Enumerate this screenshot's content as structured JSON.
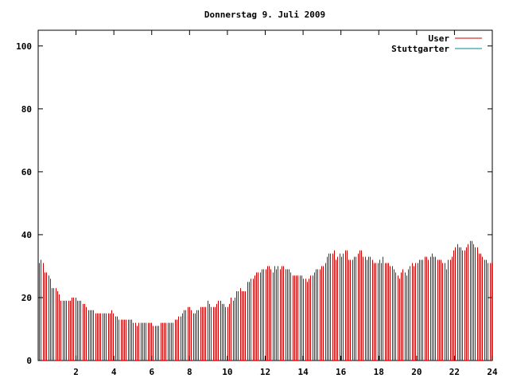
{
  "chart_data": {
    "type": "bar",
    "title": "Donnerstag 9. Juli 2009",
    "xlabel": "",
    "ylabel": "",
    "xlim": [
      0,
      24
    ],
    "ylim": [
      0,
      105
    ],
    "x_ticks": [
      "2",
      "4",
      "6",
      "8",
      "10",
      "12",
      "14",
      "16",
      "18",
      "20",
      "22",
      "24"
    ],
    "y_ticks": [
      "0",
      "20",
      "40",
      "60",
      "80",
      "100"
    ],
    "legend_position": "top-right",
    "series": [
      {
        "name": "User",
        "color": "#cc0000"
      },
      {
        "name": "Stuttgarter",
        "color": "#008b8b"
      }
    ],
    "user_values": [
      31,
      32,
      31,
      28,
      28,
      27,
      26,
      23,
      23,
      23,
      22,
      21,
      19,
      19,
      19,
      19,
      19,
      19,
      20,
      20,
      20,
      19,
      19,
      19,
      18,
      18,
      17,
      16,
      16,
      16,
      16,
      15,
      15,
      15,
      15,
      15,
      15,
      15,
      15,
      15,
      16,
      15,
      14,
      14,
      13,
      13,
      13,
      13,
      13,
      13,
      13,
      13,
      12,
      12,
      11,
      12,
      12,
      12,
      12,
      12,
      12,
      12,
      12,
      11,
      11,
      11,
      11,
      12,
      12,
      12,
      12,
      12,
      12,
      12,
      12,
      13,
      13,
      14,
      14,
      15,
      16,
      16,
      17,
      17,
      16,
      15,
      15,
      16,
      16,
      17,
      17,
      17,
      17,
      19,
      18,
      17,
      17,
      17,
      18,
      19,
      19,
      18,
      18,
      17,
      17,
      18,
      20,
      19,
      20,
      22,
      22,
      23,
      22,
      22,
      22,
      25,
      25,
      26,
      26,
      27,
      28,
      28,
      28,
      29,
      29,
      29,
      30,
      30,
      29,
      28,
      30,
      29,
      30,
      29,
      30,
      30,
      29,
      29,
      29,
      28,
      27,
      27,
      27,
      27,
      27,
      27,
      26,
      26,
      25,
      26,
      27,
      27,
      28,
      29,
      29,
      29,
      30,
      30,
      31,
      33,
      34,
      34,
      34,
      35,
      32,
      33,
      34,
      33,
      34,
      35,
      35,
      32,
      32,
      32,
      33,
      33,
      34,
      35,
      35,
      33,
      33,
      32,
      33,
      33,
      32,
      31,
      31,
      31,
      32,
      31,
      33,
      31,
      31,
      31,
      30,
      30,
      29,
      28,
      27,
      26,
      28,
      29,
      28,
      27,
      29,
      30,
      31,
      30,
      31,
      31,
      32,
      32,
      32,
      33,
      33,
      32,
      33,
      34,
      33,
      33,
      32,
      32,
      32,
      31,
      31,
      29,
      32,
      32,
      33,
      35,
      36,
      37,
      36,
      36,
      35,
      35,
      36,
      37,
      38,
      38,
      37,
      36,
      36,
      34,
      34,
      33,
      32,
      32,
      31,
      31,
      31
    ],
    "stuttgarter_values": []
  }
}
